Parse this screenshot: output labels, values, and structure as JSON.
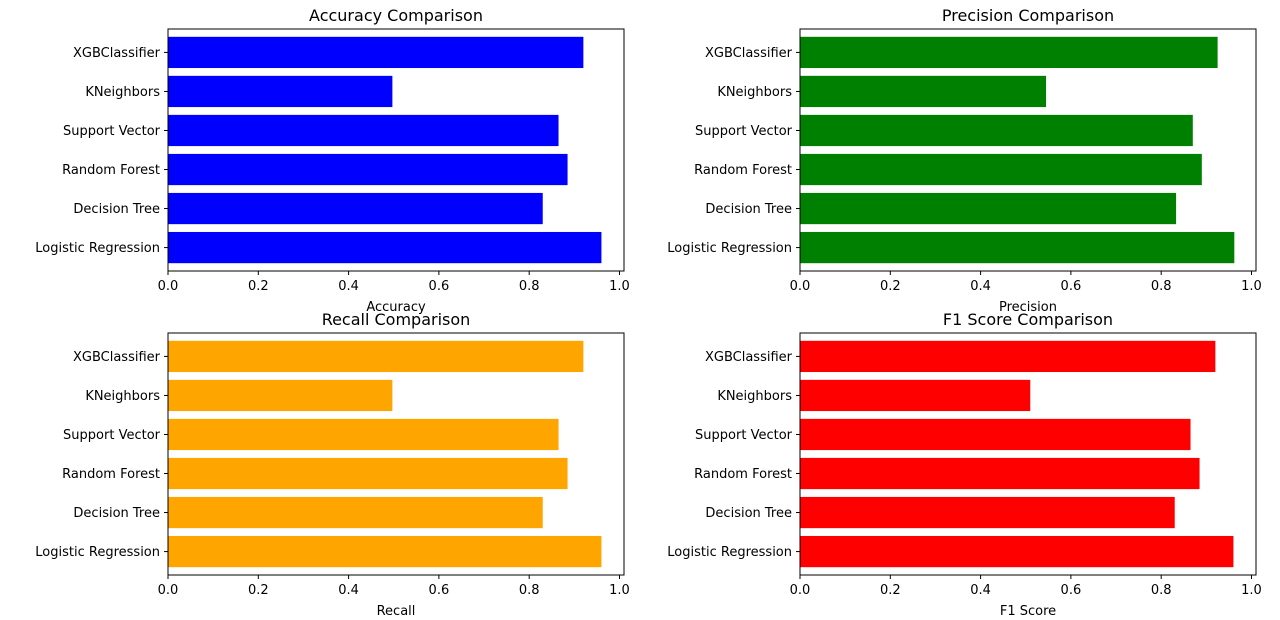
{
  "chart_data": [
    {
      "type": "bar",
      "orientation": "horizontal",
      "title": "Accuracy Comparison",
      "xlabel": "Accuracy",
      "ylabel": "",
      "color": "#0000ff",
      "xlim": [
        0,
        1.0
      ],
      "xticks": [
        "0.0",
        "0.2",
        "0.4",
        "0.6",
        "0.8",
        "1.0"
      ],
      "categories": [
        "Logistic Regression",
        "Decision Tree",
        "Random Forest",
        "Support Vector",
        "KNeighbors",
        "XGBClassifier"
      ],
      "values": [
        0.96,
        0.83,
        0.885,
        0.865,
        0.497,
        0.92
      ],
      "grid": false
    },
    {
      "type": "bar",
      "orientation": "horizontal",
      "title": "Precision Comparison",
      "xlabel": "Precision",
      "ylabel": "",
      "color": "#008000",
      "xlim": [
        0,
        1.0
      ],
      "xticks": [
        "0.0",
        "0.2",
        "0.4",
        "0.6",
        "0.8",
        "1.0"
      ],
      "categories": [
        "Logistic Regression",
        "Decision Tree",
        "Random Forest",
        "Support Vector",
        "KNeighbors",
        "XGBClassifier"
      ],
      "values": [
        0.962,
        0.833,
        0.89,
        0.87,
        0.545,
        0.925
      ],
      "grid": false
    },
    {
      "type": "bar",
      "orientation": "horizontal",
      "title": "Recall Comparison",
      "xlabel": "Recall",
      "ylabel": "",
      "color": "#ffa500",
      "xlim": [
        0,
        1.0
      ],
      "xticks": [
        "0.0",
        "0.2",
        "0.4",
        "0.6",
        "0.8",
        "1.0"
      ],
      "categories": [
        "Logistic Regression",
        "Decision Tree",
        "Random Forest",
        "Support Vector",
        "KNeighbors",
        "XGBClassifier"
      ],
      "values": [
        0.96,
        0.83,
        0.885,
        0.865,
        0.497,
        0.92
      ],
      "grid": false
    },
    {
      "type": "bar",
      "orientation": "horizontal",
      "title": "F1 Score Comparison",
      "xlabel": "F1 Score",
      "ylabel": "",
      "color": "#ff0000",
      "xlim": [
        0,
        1.0
      ],
      "xticks": [
        "0.0",
        "0.2",
        "0.4",
        "0.6",
        "0.8",
        "1.0"
      ],
      "categories": [
        "Logistic Regression",
        "Decision Tree",
        "Random Forest",
        "Support Vector",
        "KNeighbors",
        "XGBClassifier"
      ],
      "values": [
        0.96,
        0.83,
        0.885,
        0.865,
        0.51,
        0.92
      ],
      "grid": false
    }
  ]
}
